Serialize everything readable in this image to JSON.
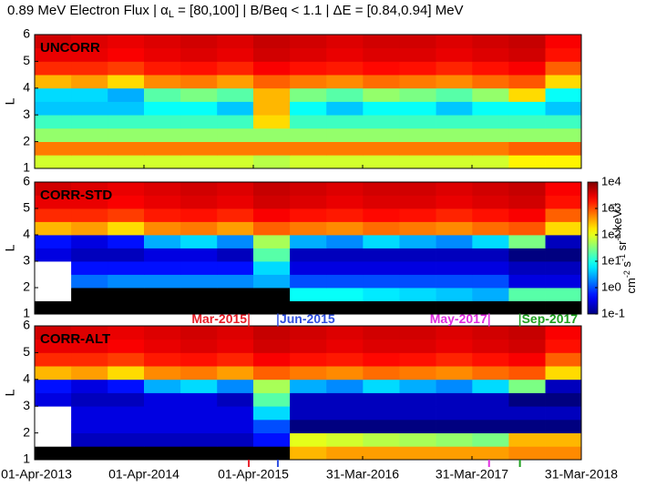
{
  "chart_data": {
    "type": "heatmap",
    "title_parts": [
      "0.89 MeV Electron Flux | α",
      "L",
      " = [80,100] | B/Beq < 1.1 | ΔE = [0.84,0.94] MeV"
    ],
    "ylabel": "L",
    "xlim": [
      "2013-04-01",
      "2018-03-31"
    ],
    "xticks": [
      {
        "value": "2013-04-01",
        "label": "01-Apr-2013"
      },
      {
        "value": "2014-04-01",
        "label": "01-Apr-2014"
      },
      {
        "value": "2015-04-01",
        "label": "01-Apr-2015"
      },
      {
        "value": "2016-03-31",
        "label": "31-Mar-2016"
      },
      {
        "value": "2017-03-31",
        "label": "31-Mar-2017"
      },
      {
        "value": "2018-03-31",
        "label": "31-Mar-2018"
      }
    ],
    "ylim": [
      1,
      6
    ],
    "yticks": [
      1,
      2,
      3,
      4,
      5,
      6
    ],
    "time_bins": [
      "2013-04-01",
      "2013-08-01",
      "2013-12-01",
      "2014-04-01",
      "2014-08-01",
      "2014-12-01",
      "2015-04-01",
      "2015-08-01",
      "2015-12-01",
      "2016-04-01",
      "2016-08-01",
      "2016-12-01",
      "2017-04-01",
      "2017-08-01",
      "2017-12-01",
      "2018-03-31"
    ],
    "L_bins": [
      1,
      1.5,
      2,
      2.5,
      3,
      3.5,
      4,
      4.5,
      5,
      5.5,
      6
    ],
    "zlim": [
      0.1,
      10000
    ],
    "zscale": "log",
    "colormap": "jet",
    "under_color": "#000000",
    "missing_color": "#ffffff",
    "zticks": [
      {
        "value": 10000,
        "label": "1e4"
      },
      {
        "value": 1000,
        "label": "1e3"
      },
      {
        "value": 100,
        "label": "1e2"
      },
      {
        "value": 10,
        "label": "1e1"
      },
      {
        "value": 1,
        "label": "1e0"
      },
      {
        "value": 0.1,
        "label": "1e-1"
      }
    ],
    "colorbar_label": [
      {
        "base": "cm",
        "exp": "-2"
      },
      {
        "base": " s",
        "exp": "-1"
      },
      {
        "base": " sr",
        "exp": "-1"
      },
      {
        "base": " keV",
        "exp": "-1"
      }
    ],
    "events": [
      {
        "label": "Mar-2015",
        "date": "2015-03-17",
        "color": "#e8202a",
        "side": "left"
      },
      {
        "label": "Jun-2015",
        "date": "2015-06-22",
        "color": "#3050e0",
        "side": "right"
      },
      {
        "label": "May-2017",
        "date": "2017-05-27",
        "color": "#e030e0",
        "side": "left"
      },
      {
        "label": "Sep-2017",
        "date": "2017-09-07",
        "color": "#20a020",
        "side": "right"
      }
    ],
    "panels": [
      {
        "label": "UNCORR",
        "values": [
          [
            80,
            80,
            80,
            80,
            80,
            80,
            60,
            80,
            80,
            80,
            80,
            80,
            80,
            150,
            150
          ],
          [
            600,
            600,
            600,
            600,
            600,
            600,
            600,
            600,
            600,
            600,
            600,
            600,
            600,
            800,
            800
          ],
          [
            40,
            40,
            40,
            40,
            40,
            40,
            40,
            40,
            40,
            40,
            40,
            40,
            40,
            40,
            40
          ],
          [
            15,
            15,
            15,
            15,
            15,
            15,
            200,
            15,
            15,
            15,
            15,
            15,
            15,
            15,
            15
          ],
          [
            4,
            4,
            4,
            8,
            8,
            4,
            300,
            8,
            4,
            8,
            8,
            4,
            8,
            8,
            4
          ],
          [
            5,
            5,
            3,
            20,
            30,
            20,
            300,
            30,
            20,
            40,
            30,
            20,
            40,
            200,
            8
          ],
          [
            300,
            400,
            200,
            500,
            600,
            400,
            800,
            600,
            500,
            700,
            600,
            500,
            700,
            900,
            200
          ],
          [
            1500,
            1500,
            1200,
            1800,
            2000,
            1600,
            2500,
            2000,
            1800,
            2200,
            2000,
            1600,
            2000,
            2500,
            800
          ],
          [
            3000,
            3000,
            2500,
            3000,
            3500,
            3000,
            4000,
            3500,
            3000,
            3500,
            3500,
            3000,
            3500,
            4000,
            2000
          ],
          [
            4000,
            3500,
            3000,
            3500,
            4000,
            3500,
            4500,
            4000,
            3500,
            4000,
            4000,
            3500,
            4000,
            4500,
            2500
          ]
        ]
      },
      {
        "label": "CORR-STD",
        "values": [
          [
            0.05,
            0.05,
            0.05,
            0.05,
            0.05,
            0.05,
            0.05,
            0.05,
            0.05,
            0.05,
            0.05,
            0.05,
            0.05,
            0.05,
            0.05
          ],
          [
            null,
            0.05,
            0.05,
            0.05,
            0.05,
            0.05,
            0.05,
            8,
            8,
            6,
            5,
            4,
            3,
            20,
            20
          ],
          [
            null,
            1.5,
            2,
            2,
            2,
            2,
            3,
            1,
            1,
            1,
            1,
            1,
            1,
            0.3,
            0.3
          ],
          [
            null,
            0.5,
            0.5,
            0.5,
            0.5,
            0.5,
            5,
            0.3,
            0.3,
            0.3,
            0.3,
            0.3,
            0.3,
            0.2,
            0.2
          ],
          [
            0.3,
            0.2,
            0.2,
            0.3,
            0.3,
            0.2,
            20,
            0.2,
            0.2,
            0.2,
            0.2,
            0.2,
            0.2,
            0.1,
            0.1
          ],
          [
            0.5,
            0.3,
            0.5,
            3,
            5,
            2,
            50,
            3,
            2,
            5,
            3,
            2,
            5,
            30,
            0.2
          ],
          [
            300,
            400,
            200,
            500,
            600,
            400,
            800,
            600,
            500,
            700,
            600,
            500,
            700,
            900,
            200
          ],
          [
            1500,
            1500,
            1200,
            1800,
            2000,
            1600,
            2500,
            2000,
            1800,
            2200,
            2000,
            1600,
            2000,
            2500,
            800
          ],
          [
            3000,
            3000,
            2500,
            3000,
            3500,
            3000,
            4000,
            3500,
            3000,
            3500,
            3500,
            3000,
            3500,
            4000,
            2000
          ],
          [
            4000,
            3500,
            3000,
            3500,
            4000,
            3500,
            4500,
            4000,
            3500,
            4000,
            4000,
            3500,
            4000,
            4500,
            2500
          ]
        ]
      },
      {
        "label": "CORR-ALT",
        "values": [
          [
            0.05,
            0.05,
            0.05,
            0.05,
            0.05,
            0.05,
            0.05,
            300,
            400,
            400,
            400,
            400,
            400,
            500,
            500
          ],
          [
            null,
            0.2,
            0.2,
            0.2,
            0.2,
            0.2,
            0.5,
            100,
            80,
            60,
            50,
            40,
            30,
            300,
            300
          ],
          [
            null,
            0.3,
            0.3,
            0.3,
            0.3,
            0.3,
            1,
            0.1,
            0.1,
            0.1,
            0.1,
            0.1,
            0.1,
            0.1,
            0.1
          ],
          [
            null,
            0.3,
            0.3,
            0.3,
            0.3,
            0.3,
            5,
            0.2,
            0.2,
            0.2,
            0.2,
            0.2,
            0.2,
            0.2,
            0.2
          ],
          [
            0.3,
            0.2,
            0.2,
            0.3,
            0.3,
            0.2,
            20,
            0.2,
            0.2,
            0.2,
            0.2,
            0.2,
            0.2,
            0.1,
            0.1
          ],
          [
            0.5,
            0.3,
            0.5,
            3,
            5,
            2,
            50,
            3,
            2,
            5,
            3,
            2,
            5,
            30,
            0.2
          ],
          [
            300,
            400,
            200,
            500,
            600,
            400,
            800,
            600,
            500,
            700,
            600,
            500,
            700,
            900,
            200
          ],
          [
            1500,
            1500,
            1200,
            1800,
            2000,
            1600,
            2500,
            2000,
            1800,
            2200,
            2000,
            1600,
            2000,
            2500,
            800
          ],
          [
            3000,
            3000,
            2500,
            3000,
            3500,
            3000,
            4000,
            3500,
            3000,
            3500,
            3500,
            3000,
            3500,
            4000,
            2000
          ],
          [
            4000,
            3500,
            3000,
            3500,
            4000,
            3500,
            4500,
            4000,
            3500,
            4000,
            4000,
            3500,
            4000,
            4500,
            2500
          ]
        ]
      }
    ]
  }
}
